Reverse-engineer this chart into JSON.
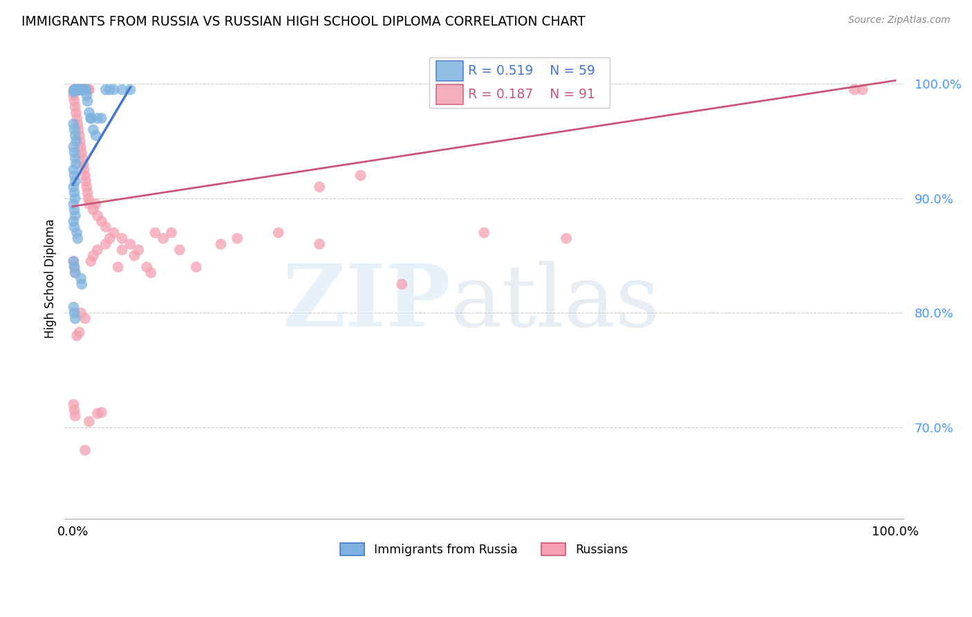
{
  "title": "IMMIGRANTS FROM RUSSIA VS RUSSIAN HIGH SCHOOL DIPLOMA CORRELATION CHART",
  "source": "Source: ZipAtlas.com",
  "ylabel": "High School Diploma",
  "legend_label_blue": "Immigrants from Russia",
  "legend_label_pink": "Russians",
  "blue_color": "#7EB3E0",
  "pink_color": "#F4A0B0",
  "blue_edge_color": "#5588CC",
  "pink_edge_color": "#CC6680",
  "blue_line_color": "#4477CC",
  "pink_line_color": "#CC5577",
  "background_color": "#FFFFFF",
  "ytick_color": "#4499FF",
  "legend_r_blue": "R = 0.519",
  "legend_n_blue": "N = 59",
  "legend_r_pink": "R = 0.187",
  "legend_n_pink": "N = 91",
  "blue_points": [
    [
      0.001,
      0.993
    ],
    [
      0.002,
      0.995
    ],
    [
      0.003,
      0.995
    ],
    [
      0.004,
      0.995
    ],
    [
      0.005,
      0.995
    ],
    [
      0.006,
      0.995
    ],
    [
      0.007,
      0.995
    ],
    [
      0.008,
      0.995
    ],
    [
      0.009,
      0.995
    ],
    [
      0.01,
      0.995
    ],
    [
      0.011,
      0.995
    ],
    [
      0.012,
      0.995
    ],
    [
      0.013,
      0.995
    ],
    [
      0.014,
      0.995
    ],
    [
      0.015,
      0.995
    ],
    [
      0.016,
      0.995
    ],
    [
      0.017,
      0.99
    ],
    [
      0.018,
      0.985
    ],
    [
      0.02,
      0.975
    ],
    [
      0.022,
      0.97
    ],
    [
      0.001,
      0.965
    ],
    [
      0.002,
      0.96
    ],
    [
      0.003,
      0.955
    ],
    [
      0.004,
      0.95
    ],
    [
      0.001,
      0.945
    ],
    [
      0.002,
      0.94
    ],
    [
      0.003,
      0.935
    ],
    [
      0.004,
      0.93
    ],
    [
      0.001,
      0.925
    ],
    [
      0.002,
      0.92
    ],
    [
      0.003,
      0.915
    ],
    [
      0.001,
      0.91
    ],
    [
      0.002,
      0.905
    ],
    [
      0.003,
      0.9
    ],
    [
      0.001,
      0.895
    ],
    [
      0.002,
      0.89
    ],
    [
      0.003,
      0.885
    ],
    [
      0.001,
      0.88
    ],
    [
      0.002,
      0.875
    ],
    [
      0.005,
      0.87
    ],
    [
      0.006,
      0.865
    ],
    [
      0.001,
      0.845
    ],
    [
      0.002,
      0.84
    ],
    [
      0.003,
      0.835
    ],
    [
      0.001,
      0.805
    ],
    [
      0.002,
      0.8
    ],
    [
      0.003,
      0.795
    ],
    [
      0.01,
      0.83
    ],
    [
      0.011,
      0.825
    ],
    [
      0.025,
      0.96
    ],
    [
      0.022,
      0.97
    ],
    [
      0.03,
      0.97
    ],
    [
      0.035,
      0.97
    ],
    [
      0.04,
      0.995
    ],
    [
      0.045,
      0.995
    ],
    [
      0.05,
      0.995
    ],
    [
      0.06,
      0.995
    ],
    [
      0.07,
      0.995
    ],
    [
      0.028,
      0.955
    ]
  ],
  "pink_points": [
    [
      0.001,
      0.995
    ],
    [
      0.002,
      0.995
    ],
    [
      0.003,
      0.995
    ],
    [
      0.004,
      0.995
    ],
    [
      0.005,
      0.995
    ],
    [
      0.006,
      0.995
    ],
    [
      0.007,
      0.995
    ],
    [
      0.008,
      0.995
    ],
    [
      0.009,
      0.995
    ],
    [
      0.01,
      0.995
    ],
    [
      0.011,
      0.995
    ],
    [
      0.012,
      0.995
    ],
    [
      0.013,
      0.995
    ],
    [
      0.014,
      0.995
    ],
    [
      0.015,
      0.995
    ],
    [
      0.016,
      0.995
    ],
    [
      0.017,
      0.995
    ],
    [
      0.018,
      0.995
    ],
    [
      0.019,
      0.995
    ],
    [
      0.02,
      0.995
    ],
    [
      0.95,
      0.995
    ],
    [
      0.96,
      0.995
    ],
    [
      0.001,
      0.99
    ],
    [
      0.002,
      0.985
    ],
    [
      0.003,
      0.98
    ],
    [
      0.004,
      0.975
    ],
    [
      0.005,
      0.97
    ],
    [
      0.006,
      0.965
    ],
    [
      0.007,
      0.96
    ],
    [
      0.008,
      0.955
    ],
    [
      0.009,
      0.95
    ],
    [
      0.01,
      0.945
    ],
    [
      0.011,
      0.94
    ],
    [
      0.012,
      0.935
    ],
    [
      0.013,
      0.93
    ],
    [
      0.014,
      0.925
    ],
    [
      0.015,
      0.92
    ],
    [
      0.016,
      0.915
    ],
    [
      0.017,
      0.91
    ],
    [
      0.018,
      0.905
    ],
    [
      0.019,
      0.9
    ],
    [
      0.02,
      0.895
    ],
    [
      0.025,
      0.89
    ],
    [
      0.03,
      0.885
    ],
    [
      0.035,
      0.88
    ],
    [
      0.04,
      0.875
    ],
    [
      0.05,
      0.87
    ],
    [
      0.06,
      0.865
    ],
    [
      0.07,
      0.86
    ],
    [
      0.08,
      0.855
    ],
    [
      0.1,
      0.87
    ],
    [
      0.11,
      0.865
    ],
    [
      0.12,
      0.87
    ],
    [
      0.001,
      0.845
    ],
    [
      0.002,
      0.84
    ],
    [
      0.003,
      0.835
    ],
    [
      0.01,
      0.8
    ],
    [
      0.015,
      0.795
    ],
    [
      0.025,
      0.85
    ],
    [
      0.03,
      0.855
    ],
    [
      0.04,
      0.86
    ],
    [
      0.2,
      0.865
    ],
    [
      0.25,
      0.87
    ],
    [
      0.001,
      0.72
    ],
    [
      0.002,
      0.715
    ],
    [
      0.003,
      0.71
    ],
    [
      0.03,
      0.712
    ],
    [
      0.035,
      0.713
    ],
    [
      0.02,
      0.705
    ],
    [
      0.015,
      0.68
    ],
    [
      0.15,
      0.84
    ],
    [
      0.3,
      0.91
    ],
    [
      0.35,
      0.92
    ],
    [
      0.3,
      0.86
    ],
    [
      0.5,
      0.87
    ],
    [
      0.13,
      0.855
    ],
    [
      0.18,
      0.86
    ],
    [
      0.09,
      0.84
    ],
    [
      0.095,
      0.835
    ],
    [
      0.028,
      0.895
    ],
    [
      0.005,
      0.78
    ],
    [
      0.008,
      0.783
    ],
    [
      0.022,
      0.845
    ],
    [
      0.045,
      0.865
    ],
    [
      0.06,
      0.855
    ],
    [
      0.075,
      0.85
    ],
    [
      0.055,
      0.84
    ],
    [
      0.4,
      0.825
    ],
    [
      0.6,
      0.865
    ]
  ],
  "blue_trend_x": [
    0.0,
    0.07
  ],
  "blue_trend_y": [
    0.912,
    0.997
  ],
  "pink_trend_x": [
    0.0,
    1.0
  ],
  "pink_trend_y": [
    0.893,
    1.003
  ],
  "xlim": [
    -0.01,
    1.01
  ],
  "ylim": [
    0.62,
    1.04
  ],
  "yticks": [
    0.7,
    0.8,
    0.9,
    1.0
  ],
  "ytick_labels": [
    "70.0%",
    "80.0%",
    "90.0%",
    "100.0%"
  ],
  "xtick_left": "0.0%",
  "xtick_right": "100.0%"
}
